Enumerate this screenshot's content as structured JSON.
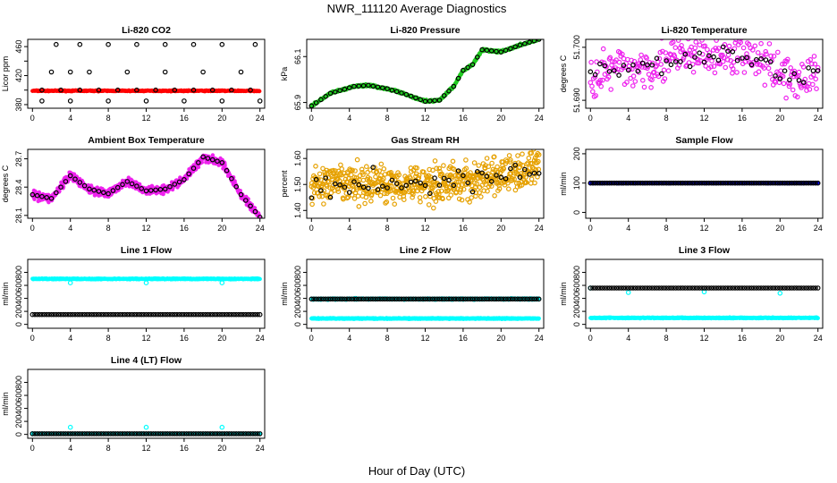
{
  "page_title": "NWR_111120  Average Diagnostics",
  "x_axis_title": "Hour of Day (UTC)",
  "chart_data": [
    {
      "type": "scatter",
      "title": "Li-820 CO2",
      "ylabel": "Licor ppm",
      "xlim": [
        -0.5,
        24.5
      ],
      "xticks": [
        0,
        4,
        8,
        12,
        16,
        20,
        24
      ],
      "ylim": [
        375,
        470
      ],
      "yticks": [
        380,
        400,
        420,
        440,
        460
      ],
      "yticklabels": [
        "380",
        "",
        "420",
        "",
        "460"
      ],
      "series": [
        {
          "color": "#ff0000",
          "marker": "dot",
          "x_range": [
            0,
            24
          ],
          "step": 0.05,
          "base": 399,
          "noise": 0.6
        },
        {
          "color": "#000000",
          "marker": "open-circle",
          "points": [
            [
              1,
              400
            ],
            [
              3,
              400
            ],
            [
              5,
              400
            ],
            [
              7,
              400
            ],
            [
              9,
              400
            ],
            [
              11,
              400
            ],
            [
              13,
              400
            ],
            [
              15,
              400
            ],
            [
              17,
              400
            ],
            [
              19,
              400
            ],
            [
              21,
              400
            ],
            [
              23,
              400
            ],
            [
              1,
              385
            ],
            [
              4,
              385
            ],
            [
              8,
              385
            ],
            [
              12,
              385
            ],
            [
              16,
              385
            ],
            [
              20,
              385
            ],
            [
              24,
              385
            ],
            [
              2,
              425
            ],
            [
              4,
              425
            ],
            [
              6,
              425
            ],
            [
              10,
              425
            ],
            [
              14,
              425
            ],
            [
              18,
              425
            ],
            [
              22,
              425
            ],
            [
              2.5,
              463
            ],
            [
              5,
              463
            ],
            [
              8,
              463
            ],
            [
              11,
              463
            ],
            [
              14,
              463
            ],
            [
              17,
              463
            ],
            [
              20,
              463
            ],
            [
              23.5,
              463
            ]
          ]
        }
      ]
    },
    {
      "type": "scatter",
      "title": "Li-820 Pressure",
      "ylabel": "kPa",
      "xlim": [
        -0.5,
        24.5
      ],
      "xticks": [
        0,
        4,
        8,
        12,
        16,
        20,
        24
      ],
      "ylim": [
        65.875,
        66.175
      ],
      "yticks": [
        65.9,
        66.1
      ],
      "yticklabels": [
        "65.9",
        "66.1"
      ],
      "series": [
        {
          "color": "#22cc22",
          "marker": "dot",
          "knots": [
            [
              0,
              65.885
            ],
            [
              2,
              65.94
            ],
            [
              4.5,
              65.97
            ],
            [
              6,
              65.975
            ],
            [
              8,
              65.96
            ],
            [
              10,
              65.935
            ],
            [
              12,
              65.905
            ],
            [
              13.5,
              65.91
            ],
            [
              15,
              65.97
            ],
            [
              16,
              66.04
            ],
            [
              17,
              66.065
            ],
            [
              18,
              66.13
            ],
            [
              19,
              66.125
            ],
            [
              20,
              66.12
            ],
            [
              22,
              66.15
            ],
            [
              24,
              66.175
            ]
          ],
          "noise": 0.004
        },
        {
          "color": "#000000",
          "marker": "open-circle",
          "knots": [
            [
              0,
              65.885
            ],
            [
              2,
              65.94
            ],
            [
              4.5,
              65.97
            ],
            [
              6,
              65.975
            ],
            [
              8,
              65.96
            ],
            [
              10,
              65.935
            ],
            [
              12,
              65.905
            ],
            [
              13.5,
              65.91
            ],
            [
              15,
              65.97
            ],
            [
              16,
              66.04
            ],
            [
              17,
              66.065
            ],
            [
              18,
              66.13
            ],
            [
              19,
              66.125
            ],
            [
              20,
              66.12
            ],
            [
              22,
              66.15
            ],
            [
              24,
              66.175
            ]
          ],
          "every": 0.5
        }
      ]
    },
    {
      "type": "scatter",
      "title": "Li-820 Temperature",
      "ylabel": "degrees C",
      "xlim": [
        -0.5,
        24.5
      ],
      "xticks": [
        0,
        4,
        8,
        12,
        16,
        20,
        24
      ],
      "ylim": [
        51.6885,
        51.7015
      ],
      "yticks": [
        51.69,
        51.7
      ],
      "yticklabels": [
        "51.690",
        "51.700"
      ],
      "series": [
        {
          "color": "#ee22ee",
          "marker": "open-circle",
          "knots": [
            [
              0,
              51.695
            ],
            [
              4,
              51.696
            ],
            [
              8,
              51.6975
            ],
            [
              12,
              51.6985
            ],
            [
              16,
              51.6985
            ],
            [
              18,
              51.698
            ],
            [
              20,
              51.695
            ],
            [
              22,
              51.694
            ],
            [
              24,
              51.695
            ]
          ],
          "noise": 0.0035,
          "step": 0.08
        },
        {
          "color": "#000000",
          "marker": "open-circle",
          "knots": [
            [
              0,
              51.695
            ],
            [
              4,
              51.696
            ],
            [
              8,
              51.6975
            ],
            [
              12,
              51.6985
            ],
            [
              16,
              51.6985
            ],
            [
              18,
              51.698
            ],
            [
              20,
              51.695
            ],
            [
              22,
              51.694
            ],
            [
              24,
              51.695
            ]
          ],
          "noise": 0.0015,
          "every": 0.5
        }
      ]
    },
    {
      "type": "scatter",
      "title": "Ambient Box Temperature",
      "ylabel": "degrees C",
      "xlim": [
        -0.5,
        24.5
      ],
      "xticks": [
        0,
        4,
        8,
        12,
        16,
        20,
        24
      ],
      "ylim": [
        28.07,
        28.8
      ],
      "yticks": [
        28.1,
        28.4,
        28.7
      ],
      "yticklabels": [
        "28.1",
        "28.4",
        "28.7"
      ],
      "series": [
        {
          "color": "#ee22ee",
          "marker": "dot",
          "knots": [
            [
              0,
              28.32
            ],
            [
              2,
              28.28
            ],
            [
              4,
              28.52
            ],
            [
              6,
              28.38
            ],
            [
              8,
              28.33
            ],
            [
              10,
              28.46
            ],
            [
              12,
              28.36
            ],
            [
              14,
              28.38
            ],
            [
              16,
              28.48
            ],
            [
              18,
              28.72
            ],
            [
              20,
              28.66
            ],
            [
              22,
              28.32
            ],
            [
              24,
              28.08
            ]
          ],
          "noise": 0.035
        },
        {
          "color": "#000000",
          "marker": "open-circle",
          "knots": [
            [
              0,
              28.32
            ],
            [
              2,
              28.28
            ],
            [
              4,
              28.52
            ],
            [
              6,
              28.38
            ],
            [
              8,
              28.33
            ],
            [
              10,
              28.46
            ],
            [
              12,
              28.36
            ],
            [
              14,
              28.38
            ],
            [
              16,
              28.48
            ],
            [
              18,
              28.72
            ],
            [
              20,
              28.66
            ],
            [
              22,
              28.32
            ],
            [
              24,
              28.08
            ]
          ],
          "every": 0.5
        }
      ]
    },
    {
      "type": "scatter",
      "title": "Gas Stream RH",
      "ylabel": "percent",
      "xlim": [
        -0.5,
        24.5
      ],
      "xticks": [
        0,
        4,
        8,
        12,
        16,
        20,
        24
      ],
      "ylim": [
        1.37,
        1.635
      ],
      "yticks": [
        1.4,
        1.5,
        1.6
      ],
      "yticklabels": [
        "1.40",
        "1.50",
        "1.60"
      ],
      "series": [
        {
          "color": "#e6a100",
          "marker": "open-circle",
          "knots": [
            [
              0,
              1.5
            ],
            [
              12,
              1.505
            ],
            [
              16,
              1.51
            ],
            [
              20,
              1.53
            ],
            [
              24,
              1.565
            ]
          ],
          "noise": 0.06,
          "step": 0.04
        },
        {
          "color": "#000000",
          "marker": "open-circle",
          "knots": [
            [
              0,
              1.5
            ],
            [
              12,
              1.505
            ],
            [
              16,
              1.51
            ],
            [
              20,
              1.53
            ],
            [
              24,
              1.565
            ]
          ],
          "noise": 0.04,
          "every": 0.5
        }
      ]
    },
    {
      "type": "scatter",
      "title": "Sample Flow",
      "ylabel": "ml/min",
      "xlim": [
        -0.5,
        24.5
      ],
      "xticks": [
        0,
        4,
        8,
        12,
        16,
        20,
        24
      ],
      "ylim": [
        -20,
        215
      ],
      "yticks": [
        0,
        100,
        200
      ],
      "yticklabels": [
        "0",
        "100",
        "200"
      ],
      "series": [
        {
          "color": "#0000ff",
          "marker": "dot",
          "knots": [
            [
              0,
              100
            ],
            [
              24,
              100
            ]
          ],
          "noise": 1
        },
        {
          "color": "#000000",
          "marker": "open-circle",
          "knots": [
            [
              0,
              100
            ],
            [
              24,
              100
            ]
          ],
          "every": 0.25
        }
      ]
    },
    {
      "type": "scatter",
      "title": "Line 1 Flow",
      "ylabel": "ml/min",
      "xlim": [
        -0.5,
        24.5
      ],
      "xticks": [
        0,
        4,
        8,
        12,
        16,
        20,
        24
      ],
      "ylim": [
        -60,
        1000
      ],
      "yticks": [
        0,
        200,
        400,
        600,
        800
      ],
      "yticklabels": [
        "0",
        "200",
        "400",
        "600",
        "800"
      ],
      "series": [
        {
          "color": "#00ffff",
          "marker": "dot",
          "knots": [
            [
              0,
              700
            ],
            [
              24,
              700
            ]
          ],
          "noise": 6
        },
        {
          "color": "#00ffff",
          "marker": "open-circle",
          "points": [
            [
              4,
              640
            ],
            [
              12,
              640
            ],
            [
              20,
              640
            ]
          ]
        },
        {
          "color": "#000000",
          "marker": "open-circle",
          "knots": [
            [
              0,
              150
            ],
            [
              24,
              150
            ]
          ],
          "every": 0.25
        }
      ]
    },
    {
      "type": "scatter",
      "title": "Line 2 Flow",
      "ylabel": "ml/min",
      "xlim": [
        -0.5,
        24.5
      ],
      "xticks": [
        0,
        4,
        8,
        12,
        16,
        20,
        24
      ],
      "ylim": [
        -60,
        1000
      ],
      "yticks": [
        0,
        200,
        400,
        600,
        800
      ],
      "yticklabels": [
        "0",
        "200",
        "400",
        "600",
        "800"
      ],
      "series": [
        {
          "color": "#00ffff",
          "marker": "dot",
          "knots": [
            [
              0,
              90
            ],
            [
              24,
              90
            ]
          ],
          "noise": 6
        },
        {
          "color": "#00ffff",
          "marker": "dot",
          "knots": [
            [
              0,
              390
            ],
            [
              24,
              390
            ]
          ],
          "noise": 10
        },
        {
          "color": "#000000",
          "marker": "open-circle",
          "knots": [
            [
              0,
              390
            ],
            [
              24,
              390
            ]
          ],
          "every": 0.25
        }
      ]
    },
    {
      "type": "scatter",
      "title": "Line 3 Flow",
      "ylabel": "ml/min",
      "xlim": [
        -0.5,
        24.5
      ],
      "xticks": [
        0,
        4,
        8,
        12,
        16,
        20,
        24
      ],
      "ylim": [
        -60,
        1000
      ],
      "yticks": [
        0,
        200,
        400,
        600,
        800
      ],
      "yticklabels": [
        "0",
        "200",
        "400",
        "600",
        "800"
      ],
      "series": [
        {
          "color": "#00ffff",
          "marker": "dot",
          "knots": [
            [
              0,
              100
            ],
            [
              24,
              100
            ]
          ],
          "noise": 6
        },
        {
          "color": "#00ffff",
          "marker": "open-circle",
          "points": [
            [
              0,
              560
            ],
            [
              4,
              490
            ],
            [
              12,
              500
            ],
            [
              20,
              480
            ]
          ]
        },
        {
          "color": "#000000",
          "marker": "open-circle",
          "knots": [
            [
              0,
              560
            ],
            [
              24,
              560
            ]
          ],
          "every": 0.25
        }
      ]
    },
    {
      "type": "scatter",
      "title": "Line 4 (LT) Flow",
      "ylabel": "ml/min",
      "xlim": [
        -0.5,
        24.5
      ],
      "xticks": [
        0,
        4,
        8,
        12,
        16,
        20,
        24
      ],
      "ylim": [
        -60,
        1000
      ],
      "yticks": [
        0,
        200,
        400,
        600,
        800
      ],
      "yticklabels": [
        "0",
        "200",
        "400",
        "600",
        "800"
      ],
      "series": [
        {
          "color": "#00ffff",
          "marker": "dot",
          "knots": [
            [
              0,
              10
            ],
            [
              24,
              10
            ]
          ],
          "noise": 3
        },
        {
          "color": "#00ffff",
          "marker": "open-circle",
          "points": [
            [
              0,
              10
            ],
            [
              4,
              110
            ],
            [
              12,
              110
            ],
            [
              20,
              110
            ]
          ]
        },
        {
          "color": "#000000",
          "marker": "open-circle",
          "knots": [
            [
              0,
              10
            ],
            [
              24,
              10
            ]
          ],
          "every": 0.25
        }
      ]
    }
  ]
}
